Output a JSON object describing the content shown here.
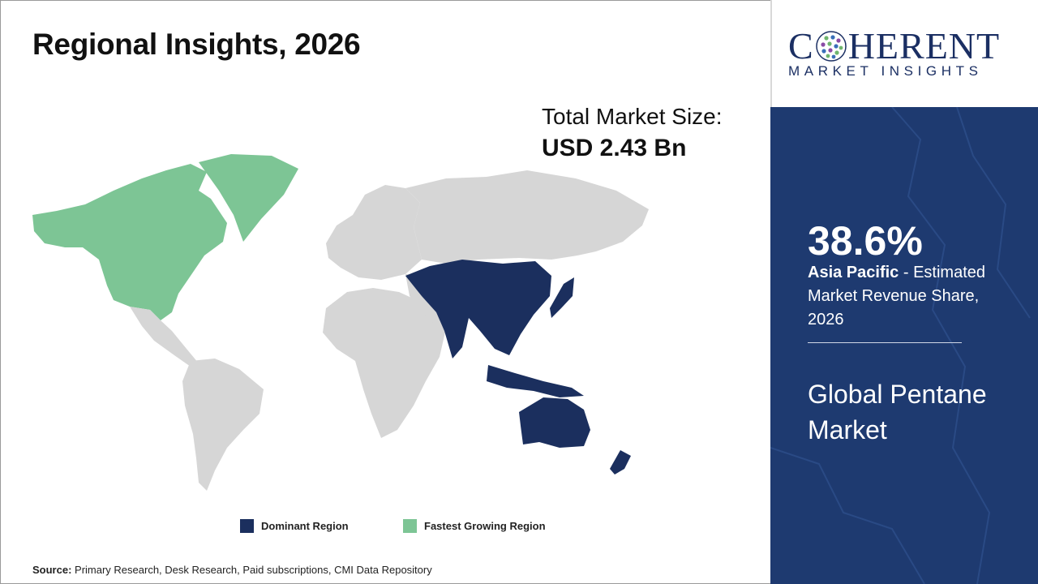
{
  "title": "Regional Insights, 2026",
  "market_size": {
    "label": "Total Market Size:",
    "value": "USD 2.43 Bn"
  },
  "colors": {
    "dominant": "#1b2f5e",
    "fastest": "#7dc595",
    "other": "#d6d6d6",
    "panel": "#1e3a70",
    "brand": "#1b2f63"
  },
  "legend": {
    "dominant_label": "Dominant Region",
    "fastest_label": "Fastest Growing Region"
  },
  "source": {
    "label": "Source:",
    "text": " Primary Research, Desk Research, Paid subscriptions, CMI Data Repository"
  },
  "logo": {
    "word_left": "C",
    "word_right": "HERENT",
    "tagline": "MARKET INSIGHTS"
  },
  "highlight": {
    "share": "38.6%",
    "region": "Asia Pacific",
    "desc": " - Estimated Market Revenue Share, 2026",
    "market_name": "Global Pentane Market"
  }
}
